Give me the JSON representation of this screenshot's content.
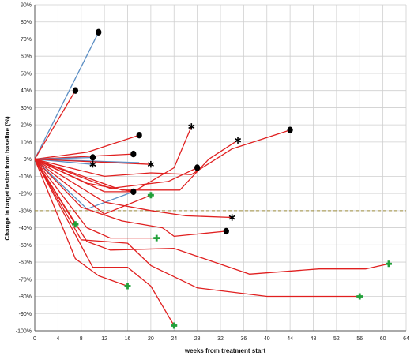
{
  "chart_data": {
    "type": "line",
    "title": "",
    "xlabel": "weeks from treatment start",
    "ylabel": "Change in target lesion from baseline (%)",
    "xlim": [
      0,
      64
    ],
    "ylim": [
      -100,
      90
    ],
    "xticks": [
      0,
      4,
      8,
      12,
      16,
      20,
      24,
      28,
      32,
      36,
      40,
      44,
      48,
      52,
      56,
      60,
      64
    ],
    "yticks": [
      90,
      80,
      70,
      60,
      50,
      40,
      30,
      20,
      10,
      0,
      -10,
      -20,
      -30,
      -40,
      -50,
      -60,
      -70,
      -80,
      -90,
      -100
    ],
    "xtick_labels": [
      "0",
      "4",
      "8",
      "12",
      "16",
      "20",
      "24",
      "28",
      "32",
      "36",
      "40",
      "44",
      "48",
      "52",
      "56",
      "60",
      "64"
    ],
    "ytick_labels": [
      "90%",
      "80%",
      "70%",
      "60%",
      "50%",
      "40%",
      "30%",
      "20%",
      "10%",
      "0%",
      "-10%",
      "-20%",
      "-30%",
      "-40%",
      "-50%",
      "-60%",
      "-70%",
      "-80%",
      "-90%",
      "-100%"
    ],
    "grid": true,
    "reference_line": {
      "y": -30,
      "style": "dashed",
      "color": "#9a8a3a"
    },
    "colors": {
      "red": "#e02020",
      "blue": "#5b8ec4",
      "grid": "#cfcfcf",
      "marker_dot": "#000000",
      "marker_plus": "#22a03a",
      "marker_star": "#000000"
    },
    "series": [
      {
        "color": "blue",
        "points": [
          [
            0,
            0
          ],
          [
            11,
            74
          ]
        ],
        "end_marker": "dot"
      },
      {
        "color": "red",
        "points": [
          [
            0,
            0
          ],
          [
            7,
            40
          ]
        ],
        "end_marker": "dot"
      },
      {
        "color": "red",
        "points": [
          [
            0,
            0
          ],
          [
            9,
            4
          ],
          [
            18,
            14
          ]
        ],
        "end_marker": "dot"
      },
      {
        "color": "red",
        "points": [
          [
            0,
            0
          ],
          [
            17,
            3
          ]
        ],
        "end_marker": "dot"
      },
      {
        "color": "blue",
        "points": [
          [
            0,
            0
          ],
          [
            10,
            1
          ]
        ],
        "end_marker": "dot"
      },
      {
        "color": "blue",
        "points": [
          [
            0,
            0
          ],
          [
            10,
            -3
          ]
        ],
        "end_marker": "star"
      },
      {
        "color": "blue",
        "points": [
          [
            0,
            0
          ],
          [
            18,
            -2
          ]
        ],
        "end_marker": null
      },
      {
        "color": "red",
        "points": [
          [
            0,
            0
          ],
          [
            20,
            -3
          ]
        ],
        "end_marker": "star"
      },
      {
        "color": "red",
        "points": [
          [
            0,
            0
          ],
          [
            9,
            -14
          ],
          [
            17,
            -19
          ],
          [
            24,
            -5
          ],
          [
            27,
            19
          ]
        ],
        "end_marker": "star"
      },
      {
        "color": "red",
        "points": [
          [
            0,
            0
          ],
          [
            12,
            -10
          ],
          [
            20,
            -8
          ],
          [
            27,
            -9
          ],
          [
            34,
            6
          ],
          [
            44,
            17
          ]
        ],
        "end_marker": "dot"
      },
      {
        "color": "red",
        "points": [
          [
            0,
            0
          ],
          [
            13,
            -17
          ],
          [
            23,
            -13
          ],
          [
            28,
            -5
          ]
        ],
        "end_marker": "dot"
      },
      {
        "color": "red",
        "points": [
          [
            0,
            0
          ],
          [
            15,
            -18
          ],
          [
            25,
            -18
          ],
          [
            30,
            0
          ],
          [
            35,
            11
          ]
        ],
        "end_marker": "star"
      },
      {
        "color": "red",
        "points": [
          [
            0,
            0
          ],
          [
            12,
            -19
          ],
          [
            17,
            -19
          ]
        ],
        "end_marker": "dot"
      },
      {
        "color": "blue",
        "points": [
          [
            0,
            0
          ],
          [
            9,
            -29
          ],
          [
            17,
            -19
          ]
        ],
        "end_marker": null
      },
      {
        "color": "red",
        "points": [
          [
            0,
            0
          ],
          [
            12,
            -32
          ],
          [
            20,
            -21
          ]
        ],
        "end_marker": "plus"
      },
      {
        "color": "red",
        "points": [
          [
            0,
            0
          ],
          [
            12,
            -25
          ],
          [
            20,
            -30
          ],
          [
            26,
            -33
          ],
          [
            34,
            -34
          ]
        ],
        "end_marker": "star"
      },
      {
        "color": "red",
        "points": [
          [
            0,
            0
          ],
          [
            8,
            -28
          ],
          [
            15,
            -36
          ],
          [
            22,
            -40
          ],
          [
            24,
            -45
          ],
          [
            33,
            -42
          ]
        ],
        "end_marker": "dot"
      },
      {
        "color": "red",
        "points": [
          [
            0,
            0
          ],
          [
            7,
            -38
          ]
        ],
        "end_marker": "plus"
      },
      {
        "color": "red",
        "points": [
          [
            0,
            0
          ],
          [
            9,
            -40
          ],
          [
            13,
            -46
          ],
          [
            21,
            -46
          ]
        ],
        "end_marker": "plus"
      },
      {
        "color": "red",
        "points": [
          [
            0,
            0
          ],
          [
            9,
            -48
          ],
          [
            13,
            -53
          ],
          [
            24,
            -52
          ],
          [
            37,
            -67
          ],
          [
            49,
            -64
          ],
          [
            57,
            -64
          ],
          [
            61,
            -61
          ]
        ],
        "end_marker": "plus"
      },
      {
        "color": "red",
        "points": [
          [
            0,
            0
          ],
          [
            8,
            -47
          ],
          [
            16,
            -49
          ],
          [
            20,
            -62
          ],
          [
            28,
            -75
          ],
          [
            40,
            -80
          ],
          [
            56,
            -80
          ]
        ],
        "end_marker": "plus"
      },
      {
        "color": "red",
        "points": [
          [
            0,
            0
          ],
          [
            10,
            -63
          ],
          [
            16,
            -63
          ],
          [
            20,
            -74
          ],
          [
            24,
            -97
          ]
        ],
        "end_marker": "plus"
      },
      {
        "color": "red",
        "points": [
          [
            0,
            0
          ],
          [
            7,
            -58
          ],
          [
            11,
            -68
          ],
          [
            16,
            -74
          ]
        ],
        "end_marker": "plus"
      }
    ]
  }
}
